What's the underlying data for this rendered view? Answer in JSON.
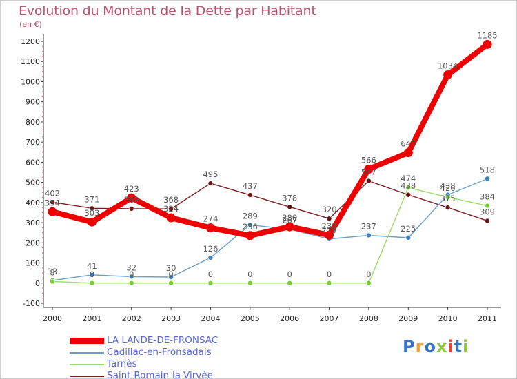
{
  "title": "Evolution du Montant de la Dette par Habitant",
  "unit": "(en €)",
  "logo": {
    "text": "Proxiti",
    "colors": [
      "#3a74c4",
      "#f2a13a",
      "#3a74c4",
      "#8cc63e",
      "#e8412c",
      "#3a74c4",
      "#8cc63e"
    ]
  },
  "chart_data": {
    "type": "line",
    "title": "Evolution du Montant de la Dette par Habitant",
    "ylabel": "(en €)",
    "xlabel": "",
    "x": [
      "2000",
      "2001",
      "2002",
      "2003",
      "2004",
      "2005",
      "2006",
      "2007",
      "2008",
      "2009",
      "2010",
      "2011"
    ],
    "ylim": [
      -100,
      1200
    ],
    "yticks": [
      -100,
      0,
      100,
      200,
      300,
      400,
      500,
      600,
      700,
      800,
      900,
      1000,
      1100,
      1200
    ],
    "grid": false,
    "legend_position": "bottom-left",
    "series": [
      {
        "name": "LA LANDE-DE-FRONSAC",
        "color": "#ee0000",
        "point_color": "#ee0000",
        "width": "thick",
        "values": [
          354,
          303,
          423,
          324,
          274,
          236,
          280,
          238,
          566,
          647,
          1034,
          1185
        ],
        "labels": [
          "354",
          "303",
          "423",
          "324",
          "274",
          "236",
          "280",
          "238",
          "566",
          "647",
          "1034",
          "1185"
        ]
      },
      {
        "name": "Cadillac-en-Fronsadais",
        "color": "#6a9ec9",
        "point_color": "#3f82c0",
        "width": "thin",
        "values": [
          13,
          41,
          32,
          30,
          126,
          289,
          267,
          219,
          237,
          225,
          438,
          518
        ],
        "labels": [
          "13",
          "41",
          "32",
          "30",
          "126",
          "289",
          "267",
          "219",
          "237",
          "225",
          "438",
          "518"
        ]
      },
      {
        "name": "Tarnès",
        "color": "#99dd66",
        "point_color": "#77cc33",
        "width": "thin",
        "values": [
          8,
          0,
          0,
          0,
          0,
          0,
          0,
          0,
          0,
          474,
          426,
          384
        ],
        "labels": [
          "8",
          "0",
          "0",
          "0",
          "0",
          "0",
          "0",
          "0",
          "0",
          "474",
          "426",
          "384"
        ]
      },
      {
        "name": "Saint-Romain-la-Virvée",
        "color": "#7a1f1f",
        "point_color": "#6b1515",
        "width": "thin",
        "values": [
          402,
          371,
          369,
          368,
          495,
          437,
          378,
          320,
          507,
          438,
          375,
          309
        ],
        "labels": [
          "402",
          "371",
          "369",
          "368",
          "495",
          "437",
          "378",
          "320",
          "507",
          "438",
          "375",
          "309"
        ]
      }
    ]
  }
}
